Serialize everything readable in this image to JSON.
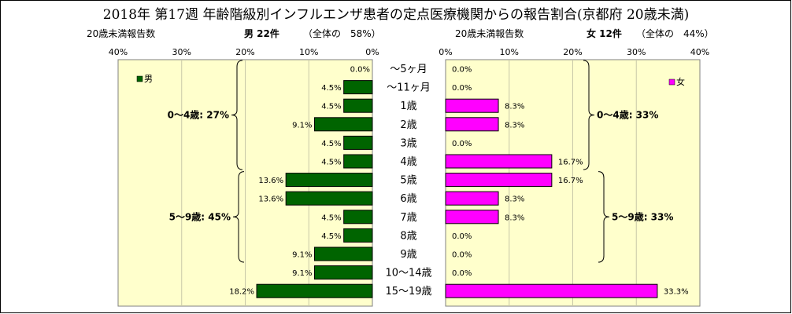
{
  "title": "2018年 第17週 年齢階級別インフルエンザ患者の定点医療機関からの報告割合(京都府 20歳未満)",
  "left_header": {
    "count_label": "20歳未満報告数",
    "sex_count": "男 22件",
    "share": "（全体の　58%）"
  },
  "right_header": {
    "count_label": "20歳未満報告数",
    "sex_count": "女 12件",
    "share": "（全体の　44%）"
  },
  "colors": {
    "male": "#006400",
    "female": "#FF00FF",
    "plot_bg": "#FFFFCC"
  },
  "chart_data": [
    {
      "type": "bar",
      "orientation": "horizontal",
      "direction": "right-to-left",
      "categories": [
        "～5ヶ月",
        "～11ヶ月",
        "1歳",
        "2歳",
        "3歳",
        "4歳",
        "5歳",
        "6歳",
        "7歳",
        "8歳",
        "9歳",
        "10～14歳",
        "15～19歳"
      ],
      "series": [
        {
          "name": "男",
          "values": [
            0.0,
            4.5,
            4.5,
            9.1,
            4.5,
            4.5,
            13.6,
            13.6,
            4.5,
            4.5,
            9.1,
            9.1,
            18.2
          ]
        }
      ],
      "data_labels": [
        "0.0%",
        "4.5%",
        "4.5%",
        "9.1%",
        "4.5%",
        "4.5%",
        "13.6%",
        "13.6%",
        "4.5%",
        "4.5%",
        "9.1%",
        "9.1%",
        "18.2%"
      ],
      "xlim": [
        0,
        40
      ],
      "ticks": [
        "40%",
        "30%",
        "20%",
        "10%",
        "0%"
      ],
      "tick_values": [
        40,
        30,
        20,
        10,
        0
      ],
      "grid": true,
      "legend": "top-left",
      "groups": [
        {
          "label": "0～4歳: 27%",
          "from": 0,
          "to": 5
        },
        {
          "label": "5～9歳: 45%",
          "from": 6,
          "to": 10
        }
      ]
    },
    {
      "type": "bar",
      "orientation": "horizontal",
      "direction": "left-to-right",
      "categories": [
        "～5ヶ月",
        "～11ヶ月",
        "1歳",
        "2歳",
        "3歳",
        "4歳",
        "5歳",
        "6歳",
        "7歳",
        "8歳",
        "9歳",
        "10～14歳",
        "15～19歳"
      ],
      "series": [
        {
          "name": "女",
          "values": [
            0.0,
            0.0,
            8.3,
            8.3,
            0.0,
            16.7,
            16.7,
            8.3,
            8.3,
            0.0,
            0.0,
            0.0,
            33.3
          ]
        }
      ],
      "data_labels": [
        "0.0%",
        "0.0%",
        "8.3%",
        "8.3%",
        "0.0%",
        "16.7%",
        "16.7%",
        "8.3%",
        "8.3%",
        "0.0%",
        "0.0%",
        "0.0%",
        "33.3%"
      ],
      "xlim": [
        0,
        40
      ],
      "ticks": [
        "0%",
        "10%",
        "20%",
        "30%",
        "40%"
      ],
      "tick_values": [
        0,
        10,
        20,
        30,
        40
      ],
      "grid": true,
      "legend": "top-right",
      "groups": [
        {
          "label": "0～4歳: 33%",
          "from": 0,
          "to": 5
        },
        {
          "label": "5～9歳: 33%",
          "from": 6,
          "to": 10
        }
      ]
    }
  ]
}
